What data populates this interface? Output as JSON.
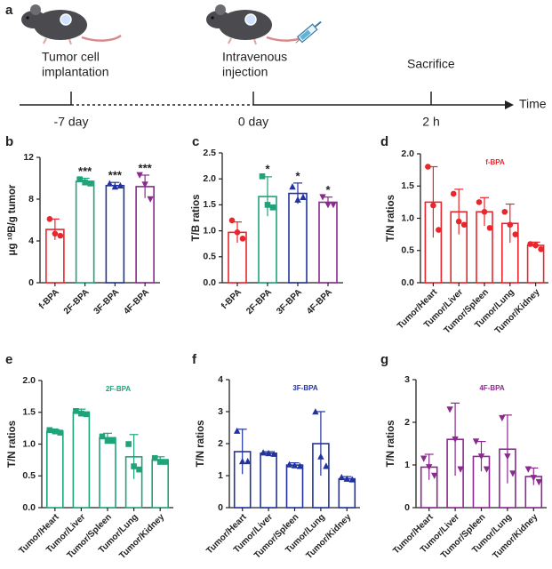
{
  "timeline": {
    "panel": "a",
    "events": [
      {
        "label": [
          "Tumor cell",
          "implantation"
        ],
        "time": "-7 day"
      },
      {
        "label": [
          "Intravenous",
          "injection"
        ],
        "time": "0 day"
      },
      {
        "label": [
          "Sacrifice"
        ],
        "time": "2 h"
      }
    ],
    "axis_label": "Time"
  },
  "chart_data": [
    {
      "type": "bar",
      "panel": "b",
      "ylabel": "μg ¹⁰B/g tumor",
      "categories": [
        "f-BPA",
        "2F-BPA",
        "3F-BPA",
        "4F-BPA"
      ],
      "values": [
        5.1,
        9.7,
        9.3,
        9.2
      ],
      "errors": [
        1.0,
        0.3,
        0.3,
        1.1
      ],
      "points": [
        [
          6.1,
          4.7,
          4.5
        ],
        [
          9.9,
          9.6,
          9.5
        ],
        [
          9.5,
          9.2,
          9.3
        ],
        [
          10.3,
          9.4,
          8.0
        ]
      ],
      "colors": [
        "#e8262b",
        "#1fa37a",
        "#2233a0",
        "#8b2a8e"
      ],
      "markers": [
        "circle",
        "square",
        "triangle",
        "triangle-down"
      ],
      "annotations": [
        null,
        "***",
        "***",
        "***"
      ],
      "ylim": [
        0,
        12
      ],
      "yticks": [
        0,
        4,
        8,
        12
      ]
    },
    {
      "type": "bar",
      "panel": "c",
      "ylabel": "T/B ratios",
      "categories": [
        "f-BPA",
        "2F-BPA",
        "3F-BPA",
        "4F-BPA"
      ],
      "values": [
        0.97,
        1.66,
        1.72,
        1.55
      ],
      "errors": [
        0.2,
        0.38,
        0.2,
        0.1
      ],
      "points": [
        [
          1.2,
          0.97,
          0.85
        ],
        [
          2.05,
          1.5,
          1.45
        ],
        [
          1.85,
          1.6,
          1.65
        ],
        [
          1.65,
          1.5,
          1.5
        ]
      ],
      "colors": [
        "#e8262b",
        "#1fa37a",
        "#2233a0",
        "#8b2a8e"
      ],
      "markers": [
        "circle",
        "square",
        "triangle",
        "triangle-down"
      ],
      "annotations": [
        null,
        "*",
        "*",
        "*"
      ],
      "ylim": [
        0,
        2.5
      ],
      "yticks": [
        {
          "value": 0,
          "label": "0.0"
        },
        0.5,
        {
          "value": 1,
          "label": "1.0"
        },
        1.5,
        {
          "value": 2,
          "label": "2.0"
        },
        2.5
      ]
    },
    {
      "type": "bar",
      "panel": "d",
      "ylabel": "T/N ratios",
      "inset_title": "f-BPA",
      "categories": [
        "Tumor/Heart",
        "Tumor/Liver",
        "Tumor/Spleen",
        "Tumor/Lung",
        "Tumor/Kidney"
      ],
      "values": [
        1.25,
        1.1,
        1.1,
        0.92,
        0.58
      ],
      "errors": [
        0.55,
        0.35,
        0.22,
        0.3,
        0.05
      ],
      "points": [
        [
          1.8,
          1.2,
          0.82
        ],
        [
          1.38,
          0.95,
          0.9
        ],
        [
          1.25,
          1.1,
          0.85
        ],
        [
          1.1,
          0.9,
          0.75
        ],
        [
          0.6,
          0.58,
          0.52
        ]
      ],
      "color": "#e8262b",
      "marker": "circle",
      "ylim": [
        0,
        2
      ],
      "yticks": [
        {
          "value": 0,
          "label": "0.0"
        },
        0.5,
        {
          "value": 1,
          "label": "1.0"
        },
        1.5,
        {
          "value": 2,
          "label": "2.0"
        }
      ]
    },
    {
      "type": "bar",
      "panel": "e",
      "ylabel": "T/N ratios",
      "inset_title": "2F-BPA",
      "categories": [
        "Tumor/Heart",
        "Tumor/Liver",
        "Tumor/Spleen",
        "Tumor/Lung",
        "Tumor/Kidney"
      ],
      "values": [
        1.2,
        1.5,
        1.1,
        0.8,
        0.75
      ],
      "errors": [
        0.03,
        0.05,
        0.07,
        0.35,
        0.05
      ],
      "points": [
        [
          1.22,
          1.2,
          1.18
        ],
        [
          1.52,
          1.48,
          1.47
        ],
        [
          1.12,
          1.05,
          1.05
        ],
        [
          1.0,
          0.65,
          0.6
        ],
        [
          0.78,
          0.72,
          0.72
        ]
      ],
      "color": "#1fa37a",
      "marker": "square",
      "ylim": [
        0,
        2
      ],
      "yticks": [
        {
          "value": 0,
          "label": "0.0"
        },
        0.5,
        {
          "value": 1,
          "label": "1.0"
        },
        1.5,
        {
          "value": 2,
          "label": "2.0"
        }
      ]
    },
    {
      "type": "bar",
      "panel": "f",
      "ylabel": "T/N ratios",
      "inset_title": "3F-BPA",
      "categories": [
        "Tumor/Heart",
        "Tumor/Liver",
        "Tumor/Spleen",
        "Tumor/Lung",
        "Tumor/Kidney"
      ],
      "values": [
        1.75,
        1.7,
        1.33,
        2.0,
        0.9
      ],
      "errors": [
        0.7,
        0.05,
        0.07,
        1.0,
        0.07
      ],
      "points": [
        [
          2.4,
          1.45,
          1.45
        ],
        [
          1.72,
          1.7,
          1.68
        ],
        [
          1.35,
          1.32,
          1.3
        ],
        [
          3.0,
          1.6,
          1.3
        ],
        [
          0.95,
          0.9,
          0.88
        ]
      ],
      "color": "#2233a0",
      "marker": "triangle",
      "ylim": [
        0,
        4
      ],
      "yticks": [
        0,
        1,
        2,
        3,
        4
      ]
    },
    {
      "type": "bar",
      "panel": "g",
      "ylabel": "T/N ratios",
      "inset_title": "4F-BPA",
      "categories": [
        "Tumor/Heart",
        "Tumor/Liver",
        "Tumor/Spleen",
        "Tumor/Lung",
        "Tumor/Kidney"
      ],
      "values": [
        0.95,
        1.6,
        1.2,
        1.37,
        0.73
      ],
      "errors": [
        0.3,
        0.85,
        0.35,
        0.8,
        0.2
      ],
      "points": [
        [
          1.15,
          0.95,
          0.75
        ],
        [
          2.3,
          1.6,
          0.9
        ],
        [
          1.55,
          1.2,
          0.9
        ],
        [
          2.1,
          1.2,
          0.8
        ],
        [
          0.9,
          0.7,
          0.6
        ]
      ],
      "color": "#8b2a8e",
      "marker": "triangle-down",
      "ylim": [
        0,
        3
      ],
      "yticks": [
        0,
        1,
        2,
        3
      ]
    }
  ]
}
